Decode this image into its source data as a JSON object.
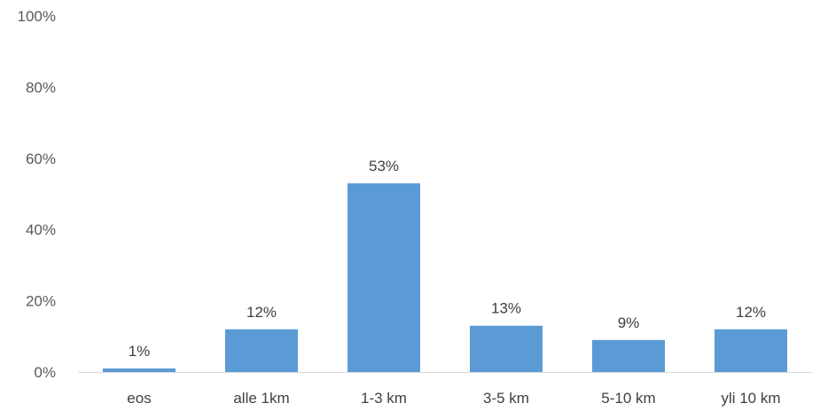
{
  "chart_data": {
    "type": "bar",
    "title": "",
    "xlabel": "",
    "ylabel": "",
    "categories": [
      "eos",
      "alle 1km",
      "1-3 km",
      "3-5 km",
      "5-10 km",
      "yli 10 km"
    ],
    "values": [
      1,
      12,
      53,
      13,
      9,
      12
    ],
    "value_labels": [
      "1%",
      "12%",
      "53%",
      "13%",
      "9%",
      "12%"
    ],
    "ylim": [
      0,
      100
    ],
    "yticks": [
      0,
      20,
      40,
      60,
      80,
      100
    ],
    "ytick_labels": [
      "0%",
      "20%",
      "40%",
      "60%",
      "80%",
      "100%"
    ],
    "grid": false,
    "legend": "none",
    "bar_color": "#5B9BD5",
    "axis_color": "#D9D9D9"
  }
}
